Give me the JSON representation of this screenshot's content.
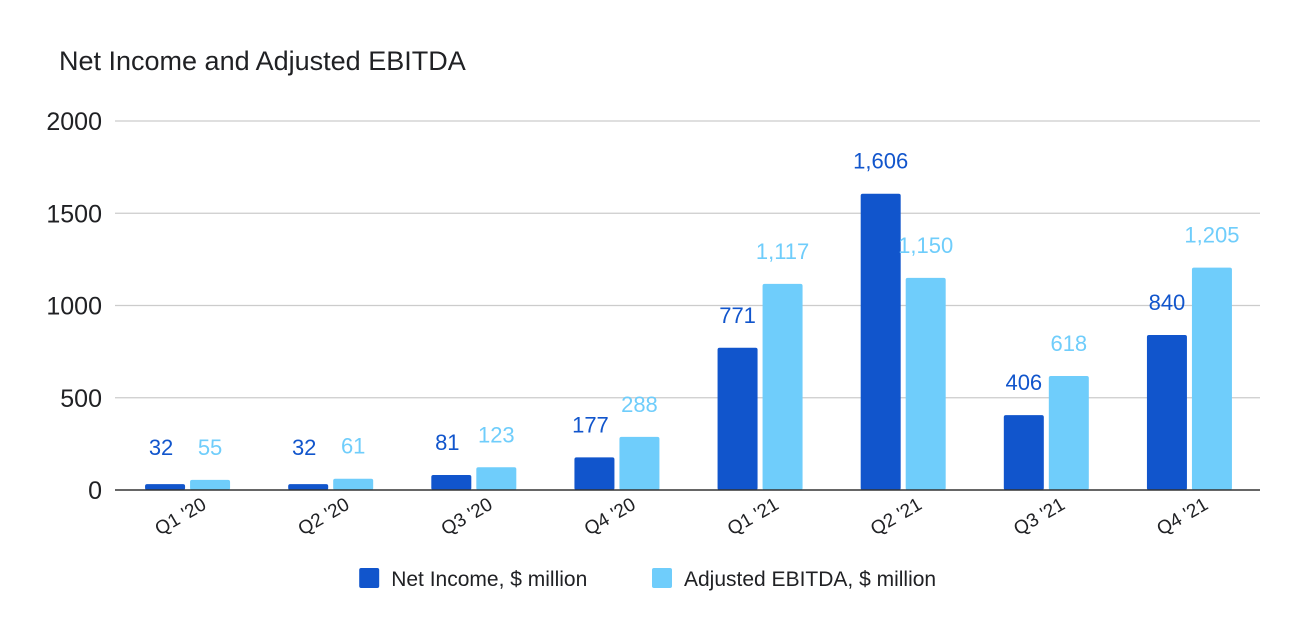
{
  "chart_data": {
    "type": "bar",
    "title": "Net Income and Adjusted EBITDA",
    "xlabel": "",
    "ylabel": "",
    "ylim": [
      0,
      2000
    ],
    "yticks": [
      0,
      500,
      1000,
      1500,
      2000
    ],
    "grid": true,
    "legend_position": "bottom",
    "categories": [
      "Q1 '20",
      "Q2 '20",
      "Q3 '20",
      "Q4 '20",
      "Q1 '21",
      "Q2 '21",
      "Q3 '21",
      "Q4 '21"
    ],
    "series": [
      {
        "name": "Net Income, $ million",
        "color": "#1155cc",
        "values": [
          32,
          32,
          81,
          177,
          771,
          1606,
          406,
          840
        ],
        "labels": [
          "32",
          "32",
          "81",
          "177",
          "771",
          "1,606",
          "406",
          "840"
        ]
      },
      {
        "name": "Adjusted EBITDA, $ million",
        "color": "#6fcdfb",
        "values": [
          55,
          61,
          123,
          288,
          1117,
          1150,
          618,
          1205
        ],
        "labels": [
          "55",
          "61",
          "123",
          "288",
          "1,117",
          "1,150",
          "618",
          "1,205"
        ]
      }
    ]
  },
  "colors": {
    "gridline": "#cccccc",
    "baseline": "#333333",
    "text": "#202124"
  }
}
